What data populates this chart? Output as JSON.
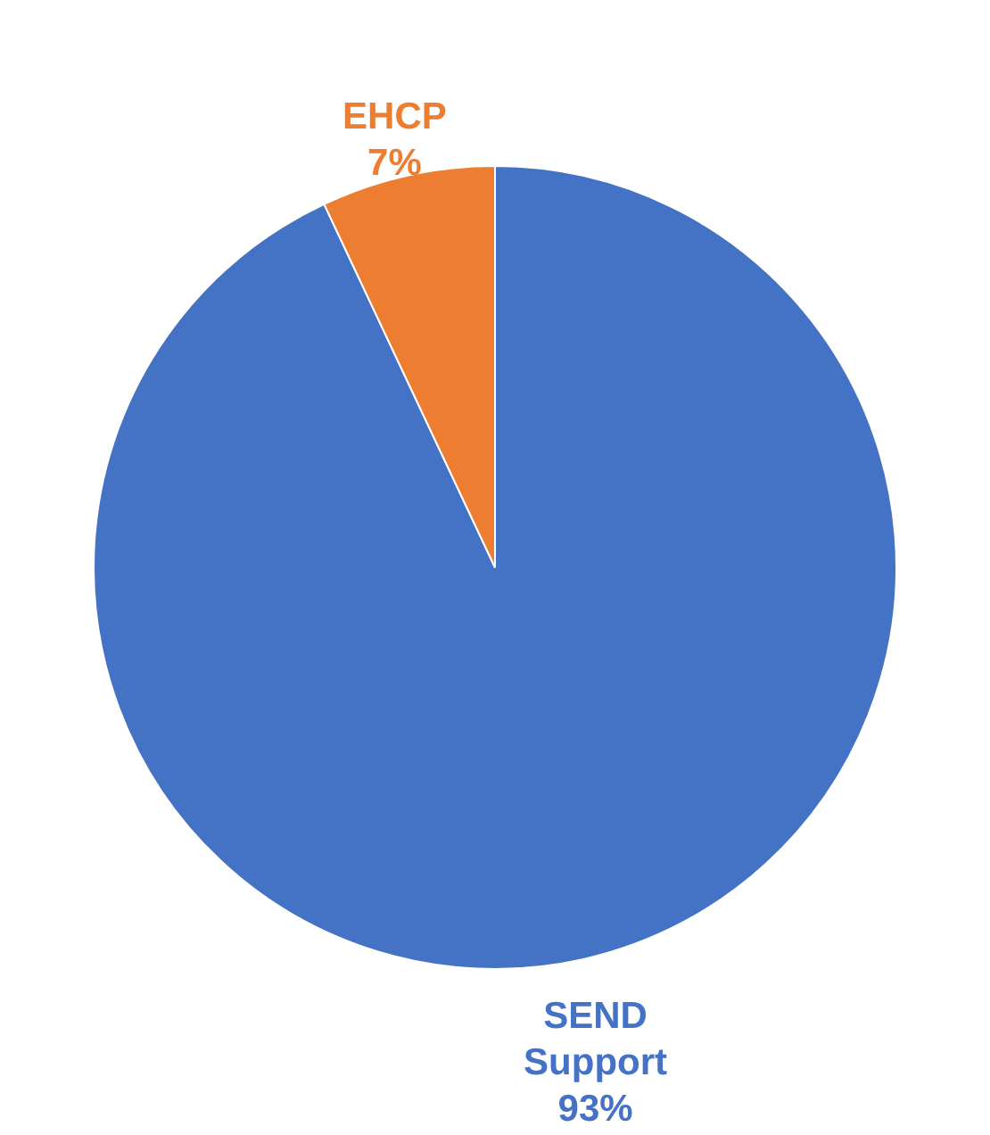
{
  "chart_data": {
    "type": "pie",
    "categories": [
      "SEND Support",
      "EHCP"
    ],
    "values": [
      93,
      7
    ],
    "colors": [
      "#4472c4",
      "#ed7d31"
    ],
    "value_labels": [
      "93%",
      "7%"
    ]
  }
}
